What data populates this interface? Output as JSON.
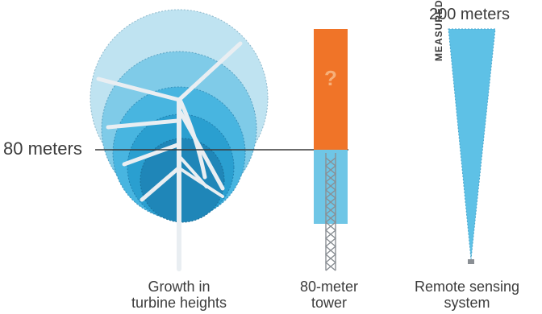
{
  "labels": {
    "height_80": "80 meters",
    "height_200": "200 meters",
    "measured": "MEASURED",
    "unknown_mark": "?"
  },
  "captions": {
    "turbines": {
      "line1": "Growth in",
      "line2": "turbine heights"
    },
    "tower": {
      "line1": "80-meter",
      "line2": "tower"
    },
    "remote": {
      "line1": "Remote sensing",
      "line2": "system"
    }
  },
  "colors": {
    "rotor_outer": "#bfe3f1",
    "rotor_ring_2": "#7fcbe8",
    "rotor_ring_3": "#48b5e0",
    "rotor_ring_4": "#2a9fd0",
    "rotor_inner": "#1f86b8",
    "tower_unknown": "#f07428",
    "tower_measured": "#6fc6e6",
    "sensing_beam": "#5ec1e6",
    "reference_line": "#3a3a3a",
    "text": "#3c3c3c"
  }
}
